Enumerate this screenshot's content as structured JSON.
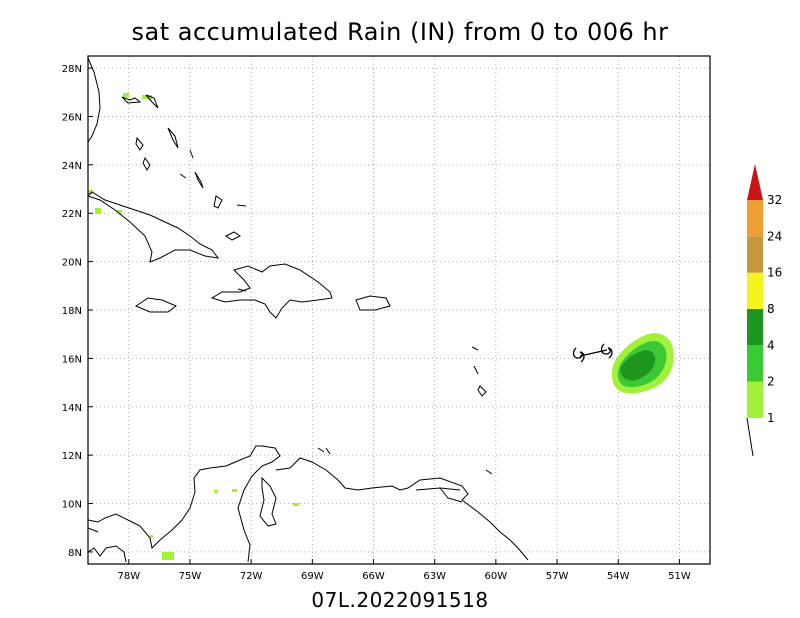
{
  "title": "sat accumulated Rain (IN) from 0 to 006 hr",
  "footer": "07L.2022091518",
  "map": {
    "lon_range": [
      -80.0,
      -49.5
    ],
    "lat_range": [
      7.5,
      28.5
    ],
    "lon_ticks": [
      {
        "value": -78,
        "label": "78W"
      },
      {
        "value": -75,
        "label": "75W"
      },
      {
        "value": -72,
        "label": "72W"
      },
      {
        "value": -69,
        "label": "69W"
      },
      {
        "value": -66,
        "label": "66W"
      },
      {
        "value": -63,
        "label": "63W"
      },
      {
        "value": -60,
        "label": "60W"
      },
      {
        "value": -57,
        "label": "57W"
      },
      {
        "value": -54,
        "label": "54W"
      },
      {
        "value": -51,
        "label": "51W"
      }
    ],
    "lat_ticks": [
      {
        "value": 8,
        "label": "8N"
      },
      {
        "value": 10,
        "label": "10N"
      },
      {
        "value": 12,
        "label": "12N"
      },
      {
        "value": 14,
        "label": "14N"
      },
      {
        "value": 16,
        "label": "16N"
      },
      {
        "value": 18,
        "label": "18N"
      },
      {
        "value": 20,
        "label": "20N"
      },
      {
        "value": 22,
        "label": "22N"
      },
      {
        "value": 24,
        "label": "24N"
      },
      {
        "value": 26,
        "label": "26N"
      },
      {
        "value": 28,
        "label": "28N"
      }
    ],
    "grid": true
  },
  "colorbar": {
    "levels": [
      "1",
      "2",
      "4",
      "8",
      "16",
      "24",
      "32"
    ],
    "colors": [
      "#a0f03c",
      "#3cc832",
      "#1e961e",
      "#f5f51e",
      "#c8963c",
      "#f0a032",
      "#c81414"
    ]
  },
  "storm_symbol": "hurricane-track"
}
